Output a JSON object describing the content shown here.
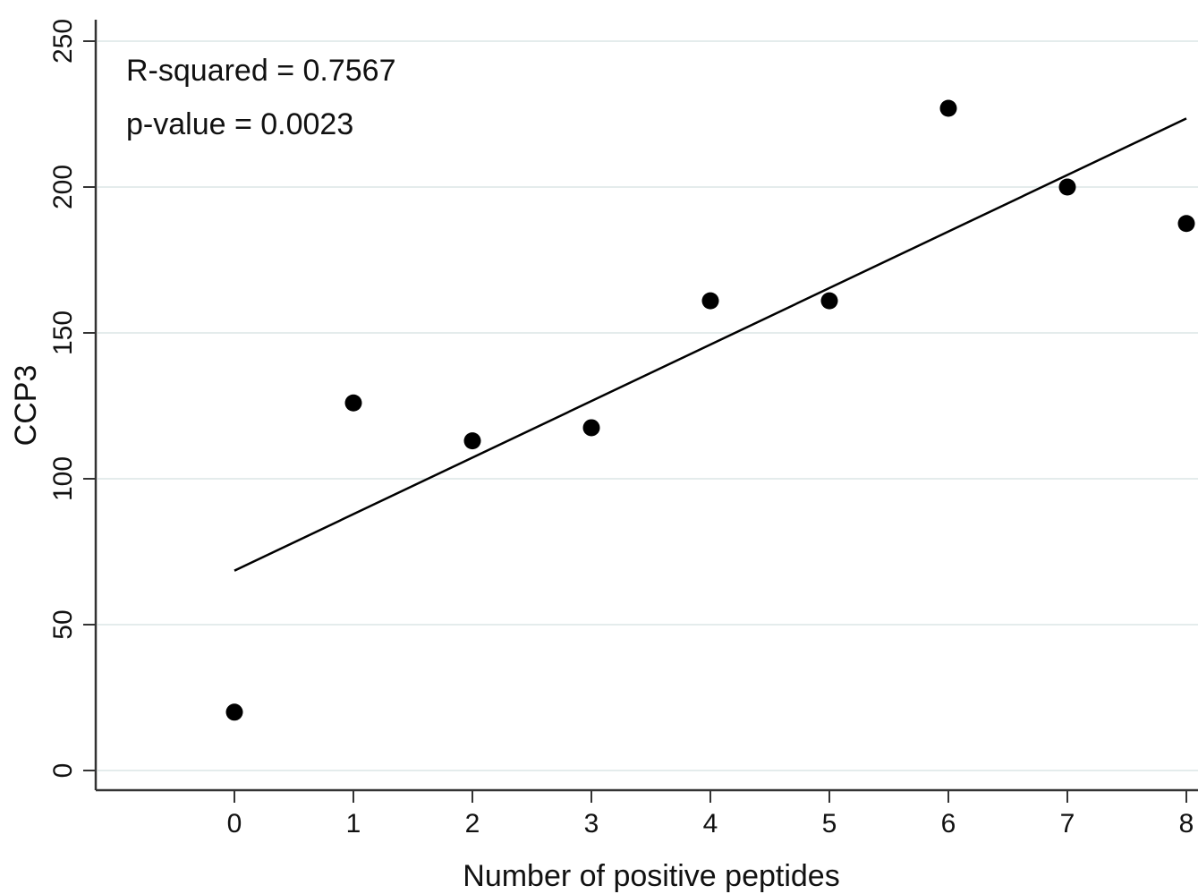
{
  "chart_data": {
    "type": "scatter",
    "title": "",
    "xlabel": "Number of positive peptides",
    "ylabel": "CCP3",
    "xlim": [
      -1.2,
      8
    ],
    "ylim": [
      -7,
      250
    ],
    "x_ticks": [
      "0",
      "1",
      "2",
      "3",
      "4",
      "5",
      "6",
      "7",
      "8"
    ],
    "y_ticks": [
      "0",
      "50",
      "100",
      "150",
      "200",
      "250"
    ],
    "grid": true,
    "points": {
      "x": [
        0,
        1,
        2,
        3,
        4,
        5,
        6,
        7,
        8
      ],
      "y": [
        20,
        126,
        113,
        117.5,
        161,
        161,
        227,
        200,
        187.5
      ]
    },
    "fit_line": {
      "x": [
        0,
        8
      ],
      "y": [
        68.5,
        223.5
      ]
    },
    "annotations": [
      "R-squared = 0.7567",
      "p-value = 0.0023"
    ],
    "colors": {
      "points": "#000000",
      "fit_line": "#000000",
      "grid": "#e4ecec",
      "axis": "#333333"
    }
  }
}
